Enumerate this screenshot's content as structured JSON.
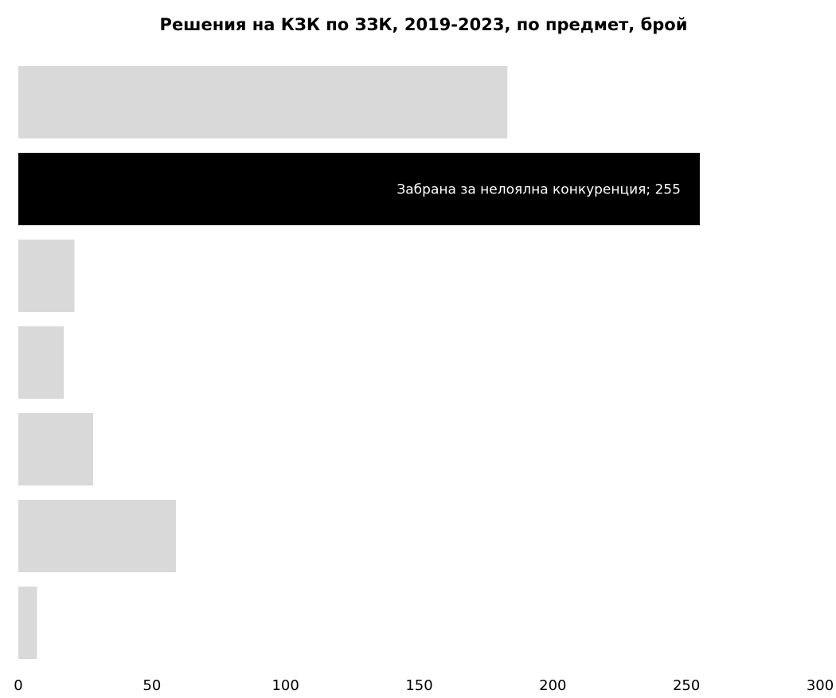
{
  "chart_data": {
    "type": "bar",
    "orientation": "horizontal",
    "title": "Решения на КЗК по ЗЗК, 2019-2023, по предмет, брой",
    "xlabel": "",
    "ylabel": "",
    "xlim": [
      0,
      300
    ],
    "ticks": [
      "0",
      "50",
      "100",
      "150",
      "200",
      "250",
      "300"
    ],
    "grid": false,
    "legend": "none",
    "bars": [
      {
        "value": 183,
        "color": "#d9d9d9",
        "label": ""
      },
      {
        "value": 255,
        "color": "#000000",
        "label": "Забрана за нелоялна конкуренция; 255"
      },
      {
        "value": 21,
        "color": "#d9d9d9",
        "label": ""
      },
      {
        "value": 17,
        "color": "#d9d9d9",
        "label": ""
      },
      {
        "value": 28,
        "color": "#d9d9d9",
        "label": ""
      },
      {
        "value": 59,
        "color": "#d9d9d9",
        "label": ""
      },
      {
        "value": 7,
        "color": "#d9d9d9",
        "label": ""
      }
    ]
  }
}
